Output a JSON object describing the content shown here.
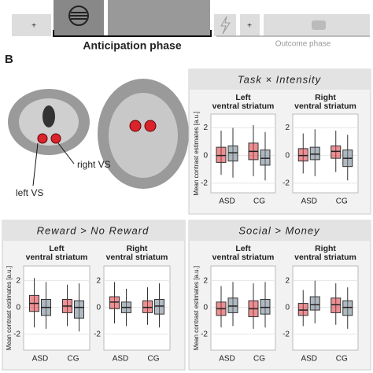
{
  "figure": {
    "timeline_markers": [
      "+",
      "+"
    ],
    "anticipation_label": "Anticipation phase",
    "outcome_label": "Outcome phase",
    "panel_letter": "B",
    "brain_labels": [
      "left VS",
      "right VS"
    ],
    "panel_titles": [
      "Task × Intensity",
      "Reward > No Reward",
      "Social > Money"
    ]
  },
  "chart_data": [
    {
      "type": "box",
      "title": [
        "Left",
        "ventral striatum"
      ],
      "ylabel": "Mean contrast estimates [a.u.]",
      "categories": [
        "ASD",
        "CG"
      ],
      "ylim": [
        -2.7,
        3.0
      ],
      "yticks": [
        -2,
        0,
        2
      ],
      "series": [
        {
          "color": "#d9363e",
          "values": [
            [
              -1.4,
              -0.5,
              0,
              0.6,
              1.8
            ],
            [
              -1.5,
              -0.3,
              0.3,
              0.9,
              2.2
            ]
          ]
        },
        {
          "color": "#6f7f8c",
          "values": [
            [
              -1.6,
              -0.4,
              0.2,
              0.7,
              2.0
            ],
            [
              -1.8,
              -0.7,
              -0.2,
              0.4,
              1.7
            ]
          ]
        }
      ]
    },
    {
      "type": "box",
      "title": [
        "Right",
        "ventral striatum"
      ],
      "categories": [
        "ASD",
        "CG"
      ],
      "ylim": [
        -2.7,
        3.0
      ],
      "yticks": [
        -2,
        0,
        2
      ],
      "series": [
        {
          "color": "#d9363e",
          "values": [
            [
              -1.3,
              -0.4,
              0,
              0.5,
              1.6
            ],
            [
              -1.2,
              -0.2,
              0.3,
              0.7,
              1.8
            ]
          ]
        },
        {
          "color": "#6f7f8c",
          "values": [
            [
              -1.5,
              -0.3,
              0.1,
              0.6,
              1.9
            ],
            [
              -1.8,
              -0.8,
              -0.2,
              0.4,
              1.5
            ]
          ]
        }
      ]
    },
    {
      "type": "box",
      "title": [
        "Left",
        "ventral striatum"
      ],
      "ylabel": "Mean contrast estimates [a.u.]",
      "categories": [
        "ASD",
        "CG"
      ],
      "ylim": [
        -3.2,
        3.1
      ],
      "yticks": [
        -2,
        0,
        2
      ],
      "series": [
        {
          "color": "#d9363e",
          "values": [
            [
              -1.5,
              -0.3,
              0.3,
              0.9,
              2.2
            ],
            [
              -1.4,
              -0.4,
              0.1,
              0.6,
              1.7
            ]
          ]
        },
        {
          "color": "#6f7f8c",
          "values": [
            [
              -1.6,
              -0.6,
              0,
              0.6,
              1.9
            ],
            [
              -1.8,
              -0.8,
              0,
              0.5,
              1.8
            ]
          ]
        }
      ]
    },
    {
      "type": "box",
      "title": [
        "Right",
        "ventral striatum"
      ],
      "categories": [
        "ASD",
        "CG"
      ],
      "ylim": [
        -3.2,
        3.1
      ],
      "yticks": [
        -2,
        0,
        2
      ],
      "series": [
        {
          "color": "#d9363e",
          "values": [
            [
              -1.2,
              -0.1,
              0.4,
              0.8,
              1.9
            ],
            [
              -1.3,
              -0.4,
              0,
              0.5,
              1.5
            ]
          ]
        },
        {
          "color": "#6f7f8c",
          "values": [
            [
              -1.4,
              -0.4,
              0,
              0.4,
              1.4
            ],
            [
              -1.5,
              -0.5,
              0.1,
              0.6,
              1.8
            ]
          ]
        }
      ]
    },
    {
      "type": "box",
      "title": [
        "Left",
        "ventral striatum"
      ],
      "ylabel": "Mean contrast estimates [a.u.]",
      "categories": [
        "ASD",
        "CG"
      ],
      "ylim": [
        -3.2,
        3.1
      ],
      "yticks": [
        -2,
        0,
        2
      ],
      "series": [
        {
          "color": "#d9363e",
          "values": [
            [
              -1.5,
              -0.6,
              -0.1,
              0.4,
              1.6
            ],
            [
              -1.6,
              -0.7,
              -0.1,
              0.5,
              1.8
            ]
          ]
        },
        {
          "color": "#6f7f8c",
          "values": [
            [
              -1.4,
              -0.4,
              0.1,
              0.7,
              1.9
            ],
            [
              -1.5,
              -0.5,
              0,
              0.6,
              1.9
            ]
          ]
        }
      ]
    },
    {
      "type": "box",
      "title": [
        "Right",
        "ventral striatum"
      ],
      "categories": [
        "ASD",
        "CG"
      ],
      "ylim": [
        -3.2,
        3.1
      ],
      "yticks": [
        -2,
        0,
        2
      ],
      "series": [
        {
          "color": "#d9363e",
          "values": [
            [
              -1.4,
              -0.6,
              -0.2,
              0.3,
              1.3
            ],
            [
              -1.3,
              -0.4,
              0.2,
              0.7,
              1.8
            ]
          ]
        },
        {
          "color": "#6f7f8c",
          "values": [
            [
              -1.2,
              -0.2,
              0.2,
              0.8,
              2.0
            ],
            [
              -1.6,
              -0.6,
              0,
              0.5,
              1.5
            ]
          ]
        }
      ]
    }
  ]
}
